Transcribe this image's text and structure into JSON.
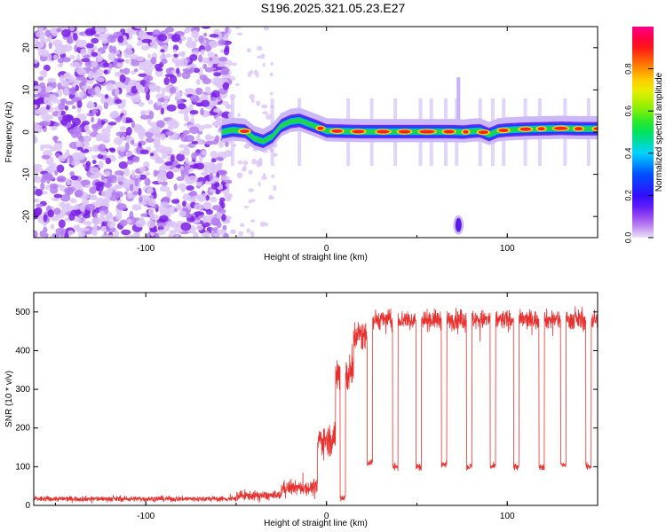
{
  "title": "S196.2025.321.05.23.E27",
  "colors": {
    "axis": "#000000",
    "snr_line": "#e8322f",
    "spectrogram_noise": "#8a2be2",
    "background": "#ffffff"
  },
  "chart_data": [
    {
      "type": "heatmap",
      "name": "spectrogram",
      "title": "",
      "xlabel": "Height of straight line (km)",
      "ylabel": "Frequency (Hz)",
      "xlim": [
        -162,
        150
      ],
      "ylim": [
        -25,
        25
      ],
      "xticks": [
        -100,
        0,
        100
      ],
      "yticks": [
        -20,
        -10,
        0,
        10,
        20
      ],
      "colorbar": {
        "label": "Normalized spectral amplitude",
        "ticks": [
          0.0,
          0.2,
          0.4,
          0.6,
          0.8
        ],
        "range": [
          0,
          1
        ],
        "colormap": "rainbow-purple-to-red"
      },
      "ridge": {
        "x": [
          -58,
          -52,
          -45,
          -40,
          -35,
          -30,
          -25,
          -20,
          -15,
          -10,
          -5,
          0,
          20,
          40,
          60,
          70,
          76,
          80,
          85,
          90,
          95,
          100,
          110,
          120,
          130,
          140,
          150
        ],
        "freq": [
          0,
          0.5,
          0.2,
          -1.5,
          -2.2,
          -1.0,
          1.5,
          2.5,
          2.8,
          2.0,
          1.2,
          0.3,
          0.1,
          0.1,
          0.1,
          0.1,
          0.0,
          0.2,
          0.3,
          -0.6,
          0.3,
          0.5,
          0.7,
          0.8,
          0.9,
          0.8,
          0.8
        ],
        "intensity_note": "strong narrow-band signal near 0 Hz from about -58 km upward; noise-only region below about -58 km"
      },
      "features": [
        {
          "label": "isolated blob",
          "x": 73,
          "freq": -22
        }
      ]
    },
    {
      "type": "line",
      "name": "snr",
      "title": "",
      "xlabel": "Height of straight line (km)",
      "ylabel": "SNR (10 * v/v)",
      "xlim": [
        -162,
        150
      ],
      "ylim": [
        0,
        550
      ],
      "xticks": [
        -100,
        0,
        100
      ],
      "yticks": [
        0,
        100,
        200,
        300,
        400,
        500
      ],
      "segments": [
        {
          "x_start": -162,
          "x_end": -50,
          "snr_mean": 17,
          "snr_noise": 7
        },
        {
          "x_start": -50,
          "x_end": -25,
          "snr_mean": 25,
          "snr_noise": 12
        },
        {
          "x_start": -25,
          "x_end": -5,
          "snr_mean": 45,
          "snr_noise": 18
        },
        {
          "x_start": -5,
          "x_end": 5,
          "snr_mean": 170,
          "snr_noise": 40
        },
        {
          "x_start": 5,
          "x_end": 15,
          "snr_mean": 340,
          "snr_noise": 50
        },
        {
          "x_start": 15,
          "x_end": 25,
          "snr_mean": 440,
          "snr_noise": 40
        },
        {
          "x_start": 25,
          "x_end": 150,
          "snr_mean": 480,
          "snr_noise": 25
        }
      ],
      "dips": [
        {
          "x": 9,
          "width": 3,
          "value": 20
        },
        {
          "x": 24,
          "width": 3,
          "value": 110
        },
        {
          "x": 38,
          "width": 3,
          "value": 100
        },
        {
          "x": 51,
          "width": 3,
          "value": 100
        },
        {
          "x": 65,
          "width": 3,
          "value": 105
        },
        {
          "x": 79,
          "width": 3,
          "value": 100
        },
        {
          "x": 92,
          "width": 3,
          "value": 100
        },
        {
          "x": 105,
          "width": 3,
          "value": 100
        },
        {
          "x": 119,
          "width": 3,
          "value": 100
        },
        {
          "x": 131,
          "width": 3,
          "value": 105
        },
        {
          "x": 145,
          "width": 3,
          "value": 100
        }
      ]
    }
  ]
}
